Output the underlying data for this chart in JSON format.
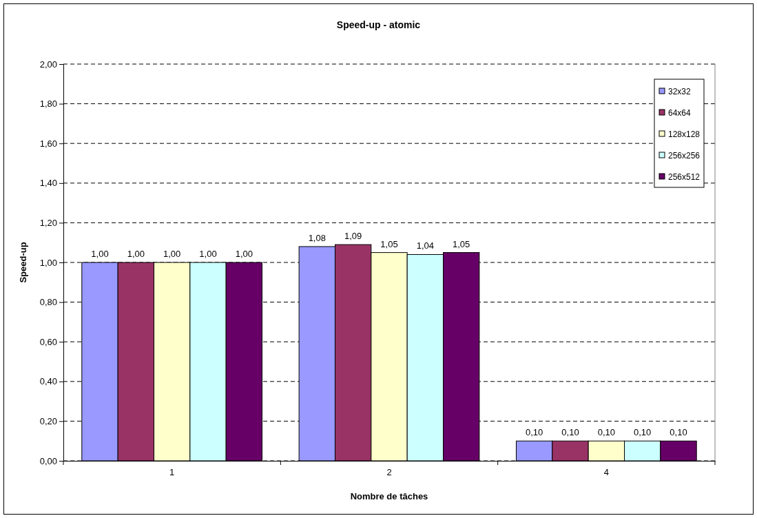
{
  "chart_data": {
    "type": "bar",
    "title": "Speed-up - atomic",
    "xlabel": "Nombre de tâches",
    "ylabel": "Speed-up",
    "categories": [
      "1",
      "2",
      "4"
    ],
    "series": [
      {
        "name": "32x32",
        "color": "#9999ff",
        "values": [
          1.0,
          1.08,
          0.1
        ],
        "value_labels": [
          "1,00",
          "1,08",
          "0,10"
        ]
      },
      {
        "name": "64x64",
        "color": "#993366",
        "values": [
          1.0,
          1.09,
          0.1
        ],
        "value_labels": [
          "1,00",
          "1,09",
          "0,10"
        ]
      },
      {
        "name": "128x128",
        "color": "#ffffcc",
        "values": [
          1.0,
          1.05,
          0.1
        ],
        "value_labels": [
          "1,00",
          "1,05",
          "0,10"
        ]
      },
      {
        "name": "256x256",
        "color": "#ccffff",
        "values": [
          1.0,
          1.04,
          0.1
        ],
        "value_labels": [
          "1,00",
          "1,04",
          "0,10"
        ]
      },
      {
        "name": "256x512",
        "color": "#660066",
        "values": [
          1.0,
          1.05,
          0.1
        ],
        "value_labels": [
          "1,00",
          "1,05",
          "0,10"
        ]
      }
    ],
    "ylim": [
      0,
      2
    ],
    "yticks": [
      {
        "value": 0,
        "label": "0,00"
      },
      {
        "value": 0.2,
        "label": "0,20"
      },
      {
        "value": 0.4,
        "label": "0,40"
      },
      {
        "value": 0.6,
        "label": "0,60"
      },
      {
        "value": 0.8,
        "label": "0,80"
      },
      {
        "value": 1.0,
        "label": "1,00"
      },
      {
        "value": 1.2,
        "label": "1,20"
      },
      {
        "value": 1.4,
        "label": "1,40"
      },
      {
        "value": 1.6,
        "label": "1,60"
      },
      {
        "value": 1.8,
        "label": "1,80"
      },
      {
        "value": 2.0,
        "label": "2,00"
      }
    ],
    "grid": "y",
    "legend": "top right"
  }
}
